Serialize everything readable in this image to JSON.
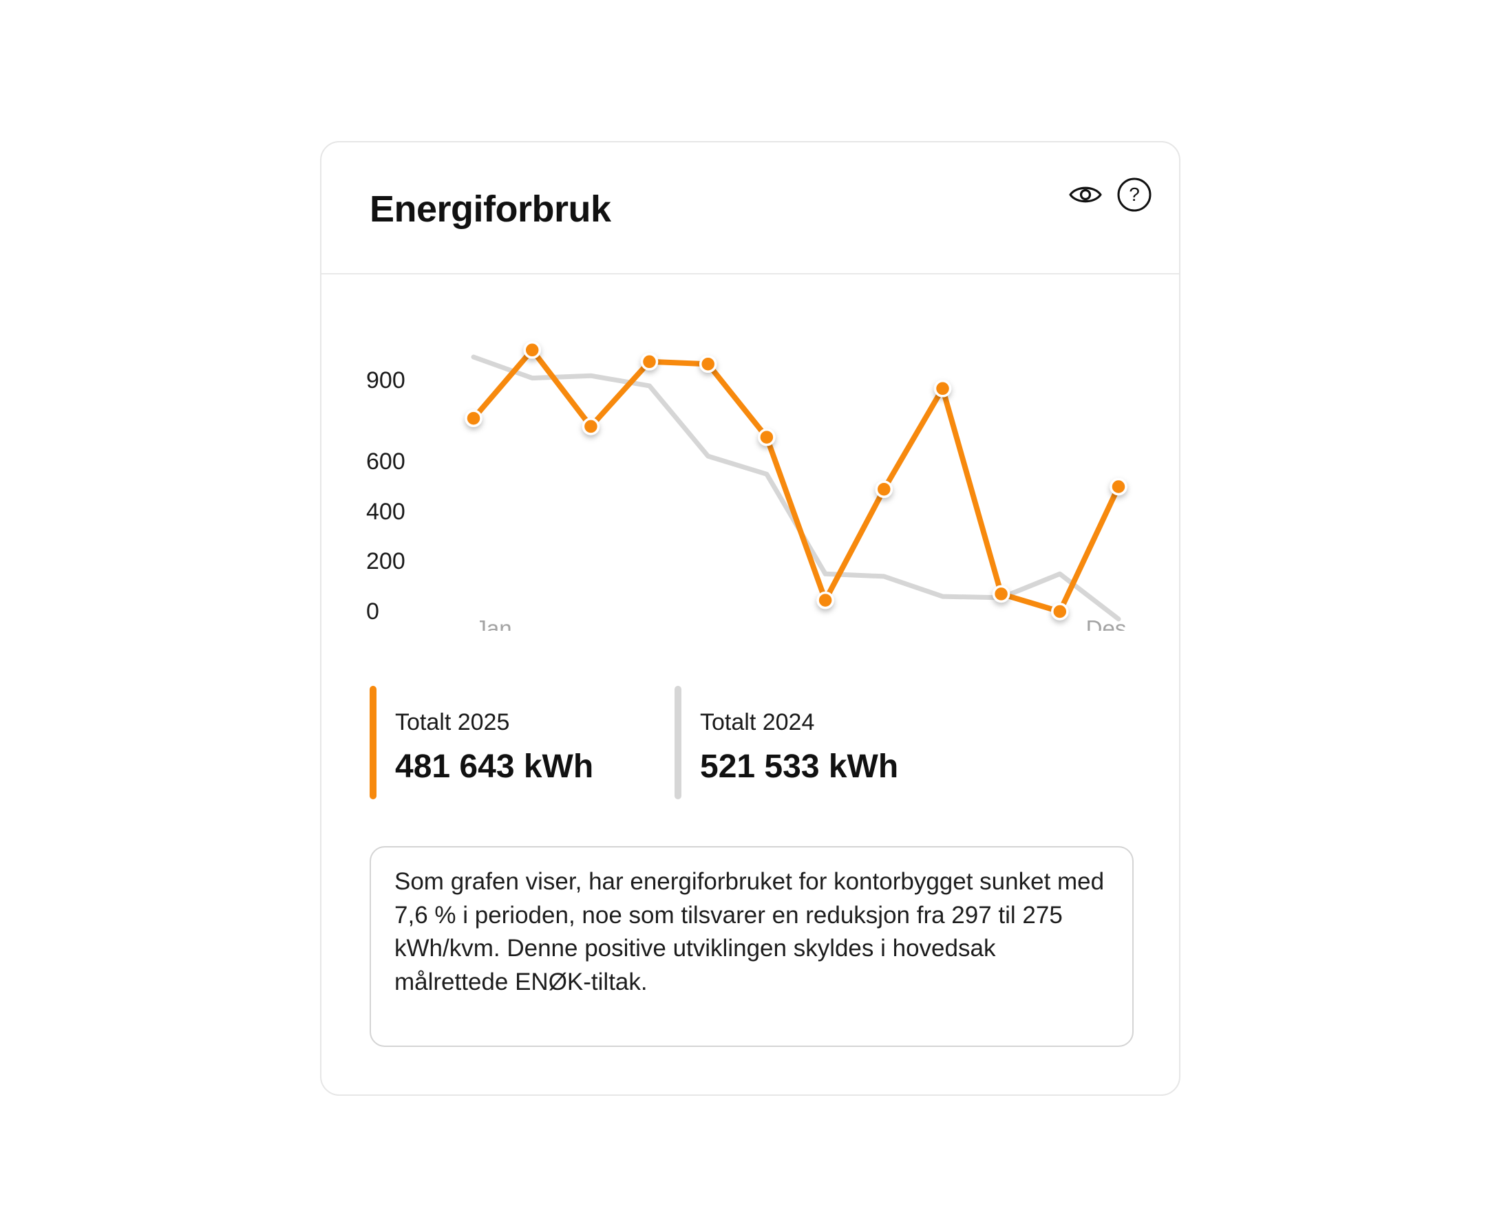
{
  "card": {
    "title": "Energiforbruk",
    "icons": {
      "view": "eye-icon",
      "help": "question-circle-icon"
    }
  },
  "chart_data": {
    "type": "line",
    "xlabel": "",
    "ylabel": "",
    "x_tick_labels": [
      "Jan",
      "Des"
    ],
    "y_ticks": [
      0,
      200,
      400,
      600,
      900
    ],
    "ylim": [
      0,
      1000
    ],
    "months": 12,
    "series": [
      {
        "name": "Totalt 2025",
        "color": "#f7890d",
        "markers": true,
        "values": [
          760,
          1030,
          730,
          980,
          970,
          690,
          45,
          490,
          870,
          70,
          0,
          500
        ]
      },
      {
        "name": "Totalt 2024",
        "color": "#d6d6d6",
        "markers": false,
        "values": [
          1000,
          910,
          920,
          880,
          620,
          550,
          150,
          140,
          60,
          55,
          150,
          -30
        ]
      }
    ],
    "grid": false,
    "legend": "none"
  },
  "totals": [
    {
      "label": "Totalt 2025",
      "value": "481 643 kWh",
      "color": "#f7890d"
    },
    {
      "label": "Totalt 2024",
      "value": "521 533 kWh",
      "color": "#d6d6d6"
    }
  ],
  "note": {
    "text": "Som grafen viser, har energiforbruket for kontorbygget sunket med 7,6 % i perioden, noe som tilsvarer en reduksjon fra 297 til 275 kWh/kvm. Denne positive utviklingen skyldes i hovedsak målrettede ENØK-tiltak."
  }
}
